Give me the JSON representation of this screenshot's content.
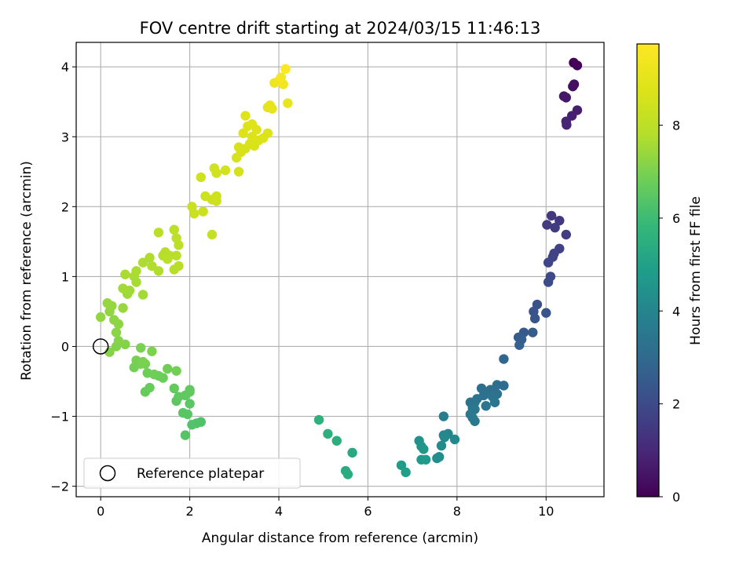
{
  "chart_data": {
    "type": "scatter",
    "title": "FOV centre drift starting at 2024/03/15 11:46:13",
    "xlabel": "Angular distance from reference (arcmin)",
    "ylabel": "Rotation from reference (arcmin)",
    "xlim": [
      -0.55,
      11.3
    ],
    "ylim": [
      -2.15,
      4.35
    ],
    "x_ticks": [
      0,
      2,
      4,
      6,
      8,
      10
    ],
    "y_ticks": [
      -2,
      -1,
      0,
      1,
      2,
      3,
      4
    ],
    "x_tick_labels": [
      "0",
      "2",
      "4",
      "6",
      "8",
      "10"
    ],
    "y_tick_labels": [
      "−2",
      "−1",
      "0",
      "1",
      "2",
      "3",
      "4"
    ],
    "grid": true,
    "colormap": "viridis",
    "colorbar": {
      "label": "Hours from first FF file",
      "range": [
        0,
        9.75
      ],
      "ticks": [
        0,
        2,
        4,
        6,
        8
      ],
      "tick_labels": [
        "0",
        "2",
        "4",
        "6",
        "8"
      ]
    },
    "legend": {
      "position": "lower-left",
      "entries": [
        {
          "label": "Reference platepar",
          "marker": "open-circle"
        }
      ]
    },
    "reference_point": {
      "x": 0,
      "y": 0
    },
    "points": [
      {
        "x": 10.62,
        "y": 4.06,
        "t": 0.05
      },
      {
        "x": 10.7,
        "y": 4.02,
        "t": 0.1
      },
      {
        "x": 10.63,
        "y": 3.75,
        "t": 0.3
      },
      {
        "x": 10.6,
        "y": 3.72,
        "t": 0.35
      },
      {
        "x": 10.4,
        "y": 3.58,
        "t": 0.5
      },
      {
        "x": 10.45,
        "y": 3.56,
        "t": 0.55
      },
      {
        "x": 10.7,
        "y": 3.38,
        "t": 0.7
      },
      {
        "x": 10.58,
        "y": 3.3,
        "t": 0.75
      },
      {
        "x": 10.45,
        "y": 3.22,
        "t": 0.85
      },
      {
        "x": 10.46,
        "y": 3.17,
        "t": 0.9
      },
      {
        "x": 10.12,
        "y": 1.87,
        "t": 1.4
      },
      {
        "x": 10.3,
        "y": 1.8,
        "t": 1.45
      },
      {
        "x": 10.02,
        "y": 1.74,
        "t": 1.5
      },
      {
        "x": 10.2,
        "y": 1.7,
        "t": 1.55
      },
      {
        "x": 10.45,
        "y": 1.6,
        "t": 1.6
      },
      {
        "x": 10.3,
        "y": 1.4,
        "t": 1.7
      },
      {
        "x": 10.18,
        "y": 1.33,
        "t": 1.75
      },
      {
        "x": 10.15,
        "y": 1.28,
        "t": 1.8
      },
      {
        "x": 10.05,
        "y": 1.2,
        "t": 1.85
      },
      {
        "x": 10.1,
        "y": 1.0,
        "t": 1.95
      },
      {
        "x": 10.05,
        "y": 0.92,
        "t": 2.0
      },
      {
        "x": 9.8,
        "y": 0.6,
        "t": 2.2
      },
      {
        "x": 9.72,
        "y": 0.5,
        "t": 2.25
      },
      {
        "x": 10.0,
        "y": 0.48,
        "t": 2.3
      },
      {
        "x": 9.75,
        "y": 0.4,
        "t": 2.35
      },
      {
        "x": 9.5,
        "y": 0.2,
        "t": 2.5
      },
      {
        "x": 9.7,
        "y": 0.2,
        "t": 2.55
      },
      {
        "x": 9.38,
        "y": 0.13,
        "t": 2.6
      },
      {
        "x": 9.45,
        "y": 0.1,
        "t": 2.65
      },
      {
        "x": 9.4,
        "y": 0.02,
        "t": 2.7
      },
      {
        "x": 9.05,
        "y": -0.18,
        "t": 2.9
      },
      {
        "x": 8.9,
        "y": -0.55,
        "t": 3.1
      },
      {
        "x": 9.05,
        "y": -0.56,
        "t": 3.12
      },
      {
        "x": 8.55,
        "y": -0.6,
        "t": 3.15
      },
      {
        "x": 8.75,
        "y": -0.62,
        "t": 3.2
      },
      {
        "x": 8.85,
        "y": -0.65,
        "t": 3.22
      },
      {
        "x": 8.9,
        "y": -0.68,
        "t": 3.25
      },
      {
        "x": 8.6,
        "y": -0.7,
        "t": 3.27
      },
      {
        "x": 8.8,
        "y": -0.72,
        "t": 3.3
      },
      {
        "x": 8.45,
        "y": -0.75,
        "t": 3.32
      },
      {
        "x": 8.3,
        "y": -0.8,
        "t": 3.35
      },
      {
        "x": 8.4,
        "y": -0.8,
        "t": 3.37
      },
      {
        "x": 8.85,
        "y": -0.8,
        "t": 3.4
      },
      {
        "x": 8.65,
        "y": -0.85,
        "t": 3.42
      },
      {
        "x": 8.35,
        "y": -0.88,
        "t": 3.45
      },
      {
        "x": 8.4,
        "y": -0.9,
        "t": 3.47
      },
      {
        "x": 8.3,
        "y": -0.97,
        "t": 3.5
      },
      {
        "x": 8.35,
        "y": -1.02,
        "t": 3.55
      },
      {
        "x": 8.4,
        "y": -1.07,
        "t": 3.6
      },
      {
        "x": 7.7,
        "y": -1.0,
        "t": 3.8
      },
      {
        "x": 7.8,
        "y": -1.25,
        "t": 4.0
      },
      {
        "x": 7.7,
        "y": -1.27,
        "t": 4.05
      },
      {
        "x": 7.72,
        "y": -1.3,
        "t": 4.1
      },
      {
        "x": 7.95,
        "y": -1.33,
        "t": 4.15
      },
      {
        "x": 7.65,
        "y": -1.42,
        "t": 4.2
      },
      {
        "x": 7.6,
        "y": -1.58,
        "t": 4.3
      },
      {
        "x": 7.55,
        "y": -1.6,
        "t": 4.35
      },
      {
        "x": 7.15,
        "y": -1.35,
        "t": 4.5
      },
      {
        "x": 7.2,
        "y": -1.43,
        "t": 4.55
      },
      {
        "x": 7.25,
        "y": -1.47,
        "t": 4.6
      },
      {
        "x": 7.2,
        "y": -1.62,
        "t": 4.7
      },
      {
        "x": 7.3,
        "y": -1.62,
        "t": 4.72
      },
      {
        "x": 6.75,
        "y": -1.7,
        "t": 4.85
      },
      {
        "x": 6.85,
        "y": -1.8,
        "t": 4.9
      },
      {
        "x": 5.65,
        "y": -1.52,
        "t": 5.3
      },
      {
        "x": 5.5,
        "y": -1.78,
        "t": 5.35
      },
      {
        "x": 5.55,
        "y": -1.83,
        "t": 5.4
      },
      {
        "x": 5.3,
        "y": -1.35,
        "t": 5.5
      },
      {
        "x": 5.1,
        "y": -1.25,
        "t": 5.55
      },
      {
        "x": 4.9,
        "y": -1.05,
        "t": 5.6
      },
      {
        "x": 2.25,
        "y": -1.08,
        "t": 6.3
      },
      {
        "x": 2.15,
        "y": -1.1,
        "t": 6.32
      },
      {
        "x": 2.05,
        "y": -1.12,
        "t": 6.35
      },
      {
        "x": 1.9,
        "y": -1.27,
        "t": 6.4
      },
      {
        "x": 1.85,
        "y": -0.95,
        "t": 6.45
      },
      {
        "x": 1.95,
        "y": -0.97,
        "t": 6.47
      },
      {
        "x": 2.0,
        "y": -0.82,
        "t": 6.5
      },
      {
        "x": 1.7,
        "y": -0.78,
        "t": 6.52
      },
      {
        "x": 1.75,
        "y": -0.72,
        "t": 6.55
      },
      {
        "x": 1.9,
        "y": -0.7,
        "t": 6.57
      },
      {
        "x": 2.0,
        "y": -0.65,
        "t": 6.6
      },
      {
        "x": 2.0,
        "y": -0.62,
        "t": 6.62
      },
      {
        "x": 1.65,
        "y": -0.6,
        "t": 6.65
      },
      {
        "x": 1.0,
        "y": -0.65,
        "t": 6.7
      },
      {
        "x": 1.1,
        "y": -0.59,
        "t": 6.72
      },
      {
        "x": 1.4,
        "y": -0.45,
        "t": 6.75
      },
      {
        "x": 1.3,
        "y": -0.42,
        "t": 6.77
      },
      {
        "x": 1.05,
        "y": -0.38,
        "t": 6.8
      },
      {
        "x": 1.2,
        "y": -0.4,
        "t": 6.82
      },
      {
        "x": 1.5,
        "y": -0.32,
        "t": 6.85
      },
      {
        "x": 1.7,
        "y": -0.35,
        "t": 6.87
      },
      {
        "x": 0.75,
        "y": -0.3,
        "t": 6.9
      },
      {
        "x": 0.9,
        "y": -0.25,
        "t": 6.92
      },
      {
        "x": 1.0,
        "y": -0.25,
        "t": 6.94
      },
      {
        "x": 0.8,
        "y": -0.2,
        "t": 6.96
      },
      {
        "x": 0.95,
        "y": -0.22,
        "t": 6.98
      },
      {
        "x": 0.9,
        "y": -0.02,
        "t": 7.0
      },
      {
        "x": 1.15,
        "y": -0.07,
        "t": 7.02
      },
      {
        "x": 0.35,
        "y": 0.0,
        "t": 7.1
      },
      {
        "x": 0.55,
        "y": 0.03,
        "t": 7.12
      },
      {
        "x": 0.4,
        "y": 0.08,
        "t": 7.14
      },
      {
        "x": 0.2,
        "y": -0.08,
        "t": 7.16
      },
      {
        "x": 0.35,
        "y": 0.2,
        "t": 7.2
      },
      {
        "x": 0.3,
        "y": 0.38,
        "t": 7.25
      },
      {
        "x": 0.4,
        "y": 0.32,
        "t": 7.27
      },
      {
        "x": 0.2,
        "y": 0.5,
        "t": 7.3
      },
      {
        "x": 0.0,
        "y": 0.42,
        "t": 7.32
      },
      {
        "x": 0.15,
        "y": 0.62,
        "t": 7.35
      },
      {
        "x": 0.25,
        "y": 0.58,
        "t": 7.37
      },
      {
        "x": 0.5,
        "y": 0.55,
        "t": 7.4
      },
      {
        "x": 0.6,
        "y": 0.75,
        "t": 7.5
      },
      {
        "x": 0.65,
        "y": 0.8,
        "t": 7.52
      },
      {
        "x": 0.5,
        "y": 0.83,
        "t": 7.54
      },
      {
        "x": 0.95,
        "y": 0.74,
        "t": 7.56
      },
      {
        "x": 0.8,
        "y": 0.92,
        "t": 7.6
      },
      {
        "x": 0.75,
        "y": 1.0,
        "t": 7.62
      },
      {
        "x": 0.55,
        "y": 1.03,
        "t": 7.64
      },
      {
        "x": 0.8,
        "y": 1.08,
        "t": 7.66
      },
      {
        "x": 0.95,
        "y": 1.2,
        "t": 7.7
      },
      {
        "x": 1.1,
        "y": 1.27,
        "t": 7.72
      },
      {
        "x": 1.15,
        "y": 1.15,
        "t": 7.74
      },
      {
        "x": 1.3,
        "y": 1.08,
        "t": 7.76
      },
      {
        "x": 1.4,
        "y": 1.3,
        "t": 7.8
      },
      {
        "x": 1.45,
        "y": 1.35,
        "t": 7.82
      },
      {
        "x": 1.55,
        "y": 1.3,
        "t": 7.84
      },
      {
        "x": 1.65,
        "y": 1.1,
        "t": 7.86
      },
      {
        "x": 1.75,
        "y": 1.15,
        "t": 7.88
      },
      {
        "x": 1.5,
        "y": 1.25,
        "t": 7.9
      },
      {
        "x": 1.7,
        "y": 1.3,
        "t": 7.92
      },
      {
        "x": 1.3,
        "y": 1.63,
        "t": 7.95
      },
      {
        "x": 1.65,
        "y": 1.67,
        "t": 7.97
      },
      {
        "x": 1.7,
        "y": 1.55,
        "t": 7.99
      },
      {
        "x": 1.75,
        "y": 1.45,
        "t": 8.0
      },
      {
        "x": 2.5,
        "y": 1.6,
        "t": 8.2
      },
      {
        "x": 2.05,
        "y": 2.0,
        "t": 8.3
      },
      {
        "x": 2.1,
        "y": 1.9,
        "t": 8.32
      },
      {
        "x": 2.3,
        "y": 1.93,
        "t": 8.34
      },
      {
        "x": 2.35,
        "y": 2.15,
        "t": 8.36
      },
      {
        "x": 2.5,
        "y": 2.1,
        "t": 8.38
      },
      {
        "x": 2.6,
        "y": 2.15,
        "t": 8.4
      },
      {
        "x": 2.6,
        "y": 2.08,
        "t": 8.42
      },
      {
        "x": 2.25,
        "y": 2.42,
        "t": 8.45
      },
      {
        "x": 2.55,
        "y": 2.55,
        "t": 8.47
      },
      {
        "x": 2.6,
        "y": 2.48,
        "t": 8.49
      },
      {
        "x": 2.8,
        "y": 2.52,
        "t": 8.5
      },
      {
        "x": 3.1,
        "y": 2.5,
        "t": 8.55
      },
      {
        "x": 3.05,
        "y": 2.7,
        "t": 8.6
      },
      {
        "x": 3.15,
        "y": 2.78,
        "t": 8.62
      },
      {
        "x": 3.1,
        "y": 2.85,
        "t": 8.64
      },
      {
        "x": 3.25,
        "y": 2.83,
        "t": 8.66
      },
      {
        "x": 3.35,
        "y": 2.9,
        "t": 8.68
      },
      {
        "x": 3.45,
        "y": 2.87,
        "t": 8.7
      },
      {
        "x": 3.55,
        "y": 2.95,
        "t": 8.72
      },
      {
        "x": 3.4,
        "y": 3.0,
        "t": 8.74
      },
      {
        "x": 3.65,
        "y": 2.98,
        "t": 8.76
      },
      {
        "x": 3.75,
        "y": 3.05,
        "t": 8.78
      },
      {
        "x": 3.2,
        "y": 3.05,
        "t": 8.8
      },
      {
        "x": 3.3,
        "y": 3.15,
        "t": 8.82
      },
      {
        "x": 3.5,
        "y": 3.1,
        "t": 8.84
      },
      {
        "x": 3.25,
        "y": 3.3,
        "t": 8.86
      },
      {
        "x": 3.4,
        "y": 3.18,
        "t": 8.88
      },
      {
        "x": 3.75,
        "y": 3.42,
        "t": 9.0
      },
      {
        "x": 3.85,
        "y": 3.4,
        "t": 9.05
      },
      {
        "x": 3.8,
        "y": 3.45,
        "t": 9.1
      },
      {
        "x": 4.2,
        "y": 3.48,
        "t": 9.15
      },
      {
        "x": 3.9,
        "y": 3.77,
        "t": 9.3
      },
      {
        "x": 4.0,
        "y": 3.8,
        "t": 9.35
      },
      {
        "x": 4.1,
        "y": 3.75,
        "t": 9.4
      },
      {
        "x": 4.05,
        "y": 3.85,
        "t": 9.5
      },
      {
        "x": 4.15,
        "y": 3.97,
        "t": 9.7
      }
    ]
  }
}
